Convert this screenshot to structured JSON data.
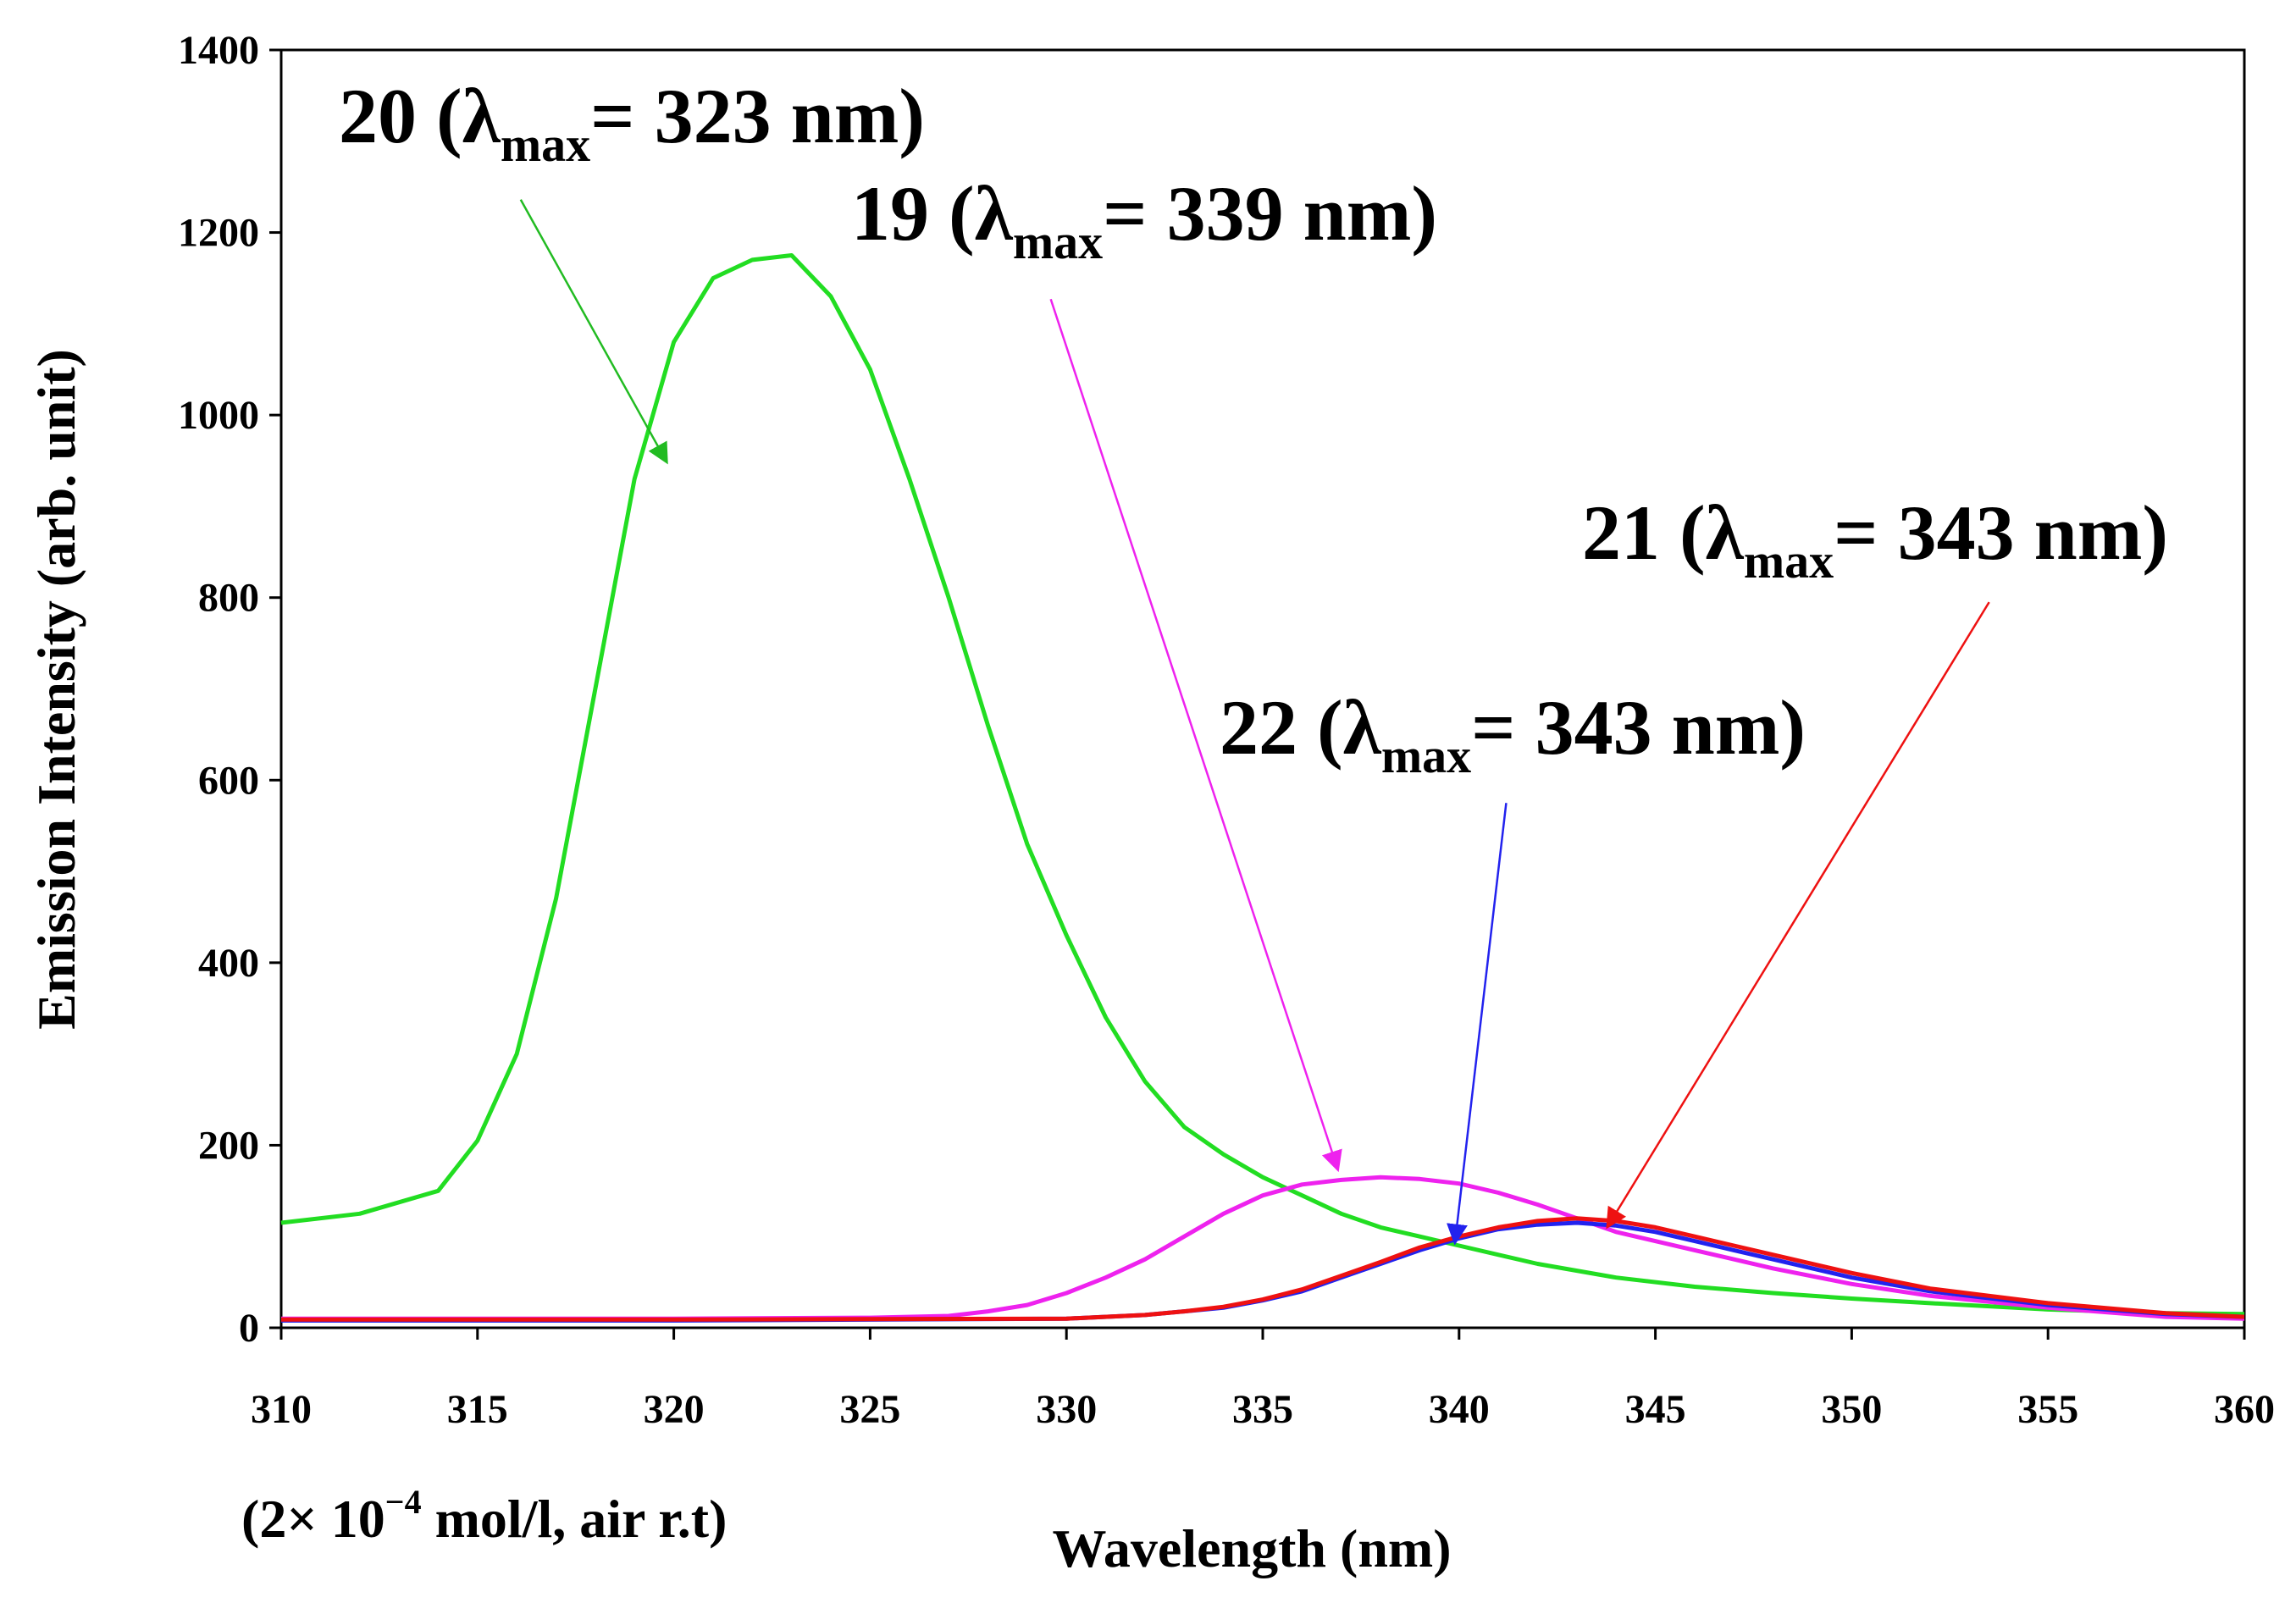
{
  "chart_data": {
    "type": "line",
    "xlabel": "Wavelength (nm)",
    "ylabel": "Emission Intensity (arb. unit)",
    "condition": {
      "prefix": "(2",
      "times": "×",
      "base": " 10",
      "exponent": "−4",
      "suffix": " mol/l, air r.t)"
    },
    "xlim": [
      310,
      360
    ],
    "ylim": [
      0,
      1400
    ],
    "xticks": [
      "310",
      "315",
      "320",
      "325",
      "330",
      "335",
      "340",
      "345",
      "350",
      "355",
      "360"
    ],
    "yticks": [
      "0",
      "200",
      "400",
      "600",
      "800",
      "1000",
      "1200",
      "1400"
    ],
    "series": [
      {
        "name": "20",
        "color": "#22dd22",
        "x": [
          310,
          312,
          314,
          315,
          316,
          317,
          318,
          319,
          320,
          321,
          322,
          323,
          324,
          325,
          326,
          327,
          328,
          329,
          330,
          331,
          332,
          333,
          334,
          335,
          336,
          337,
          338,
          339,
          340,
          342,
          344,
          346,
          348,
          350,
          352,
          355,
          358,
          360
        ],
        "y": [
          115,
          125,
          150,
          205,
          300,
          470,
          700,
          930,
          1080,
          1150,
          1170,
          1175,
          1130,
          1050,
          930,
          800,
          660,
          530,
          430,
          340,
          270,
          220,
          190,
          165,
          145,
          125,
          110,
          100,
          90,
          70,
          55,
          45,
          38,
          32,
          27,
          20,
          16,
          15
        ]
      },
      {
        "name": "19",
        "color": "#ee22ee",
        "x": [
          310,
          320,
          325,
          327,
          328,
          329,
          330,
          331,
          332,
          333,
          334,
          335,
          336,
          337,
          338,
          339,
          340,
          341,
          342,
          343,
          344,
          346,
          348,
          350,
          352,
          355,
          358,
          360
        ],
        "y": [
          10,
          10,
          11,
          13,
          18,
          25,
          38,
          55,
          75,
          100,
          125,
          145,
          157,
          162,
          165,
          163,
          158,
          148,
          135,
          120,
          105,
          85,
          65,
          48,
          35,
          22,
          12,
          10
        ]
      },
      {
        "name": "22",
        "color": "#2222ee",
        "x": [
          310,
          320,
          330,
          332,
          333,
          334,
          335,
          336,
          337,
          338,
          339,
          340,
          341,
          342,
          343,
          344,
          345,
          346,
          347,
          348,
          350,
          352,
          355,
          358,
          360
        ],
        "y": [
          8,
          8,
          10,
          14,
          18,
          22,
          30,
          40,
          55,
          70,
          85,
          98,
          108,
          113,
          115,
          112,
          105,
          95,
          85,
          75,
          55,
          40,
          25,
          15,
          12
        ]
      },
      {
        "name": "21",
        "color": "#ee1111",
        "x": [
          310,
          320,
          330,
          332,
          333,
          334,
          335,
          336,
          337,
          338,
          339,
          340,
          341,
          342,
          343,
          344,
          345,
          346,
          347,
          348,
          350,
          352,
          355,
          358,
          360
        ],
        "y": [
          9,
          9,
          10,
          14,
          18,
          23,
          31,
          42,
          57,
          72,
          88,
          100,
          110,
          117,
          120,
          117,
          110,
          100,
          90,
          80,
          60,
          43,
          27,
          16,
          12
        ]
      }
    ],
    "annotations": [
      {
        "series": "20",
        "number": "20",
        "open": " (",
        "lambda": "λ",
        "sub": "max",
        "rest": "= 323 nm)",
        "color": "#22bb22",
        "arrow_from": [
          316.1,
          1236
        ],
        "arrow_to": [
          319.8,
          950
        ]
      },
      {
        "series": "19",
        "number": "19",
        "open": " (",
        "lambda": "λ",
        "sub": "max",
        "rest": "= 339 nm)",
        "color": "#ee22ee",
        "arrow_from": [
          329.6,
          1127
        ],
        "arrow_to": [
          336.9,
          175
        ]
      },
      {
        "series": "22",
        "number": "22",
        "open": " (",
        "lambda": "λ",
        "sub": "max",
        "rest": "= 343 nm)",
        "color": "#2222ee",
        "arrow_from": [
          341.2,
          575
        ],
        "arrow_to": [
          339.9,
          95
        ]
      },
      {
        "series": "21",
        "number": "21",
        "open": " (",
        "lambda": "λ",
        "sub": "max",
        "rest": "= 343 nm)",
        "color": "#ee1111",
        "arrow_from": [
          353.5,
          795
        ],
        "arrow_to": [
          343.8,
          112
        ]
      }
    ]
  }
}
